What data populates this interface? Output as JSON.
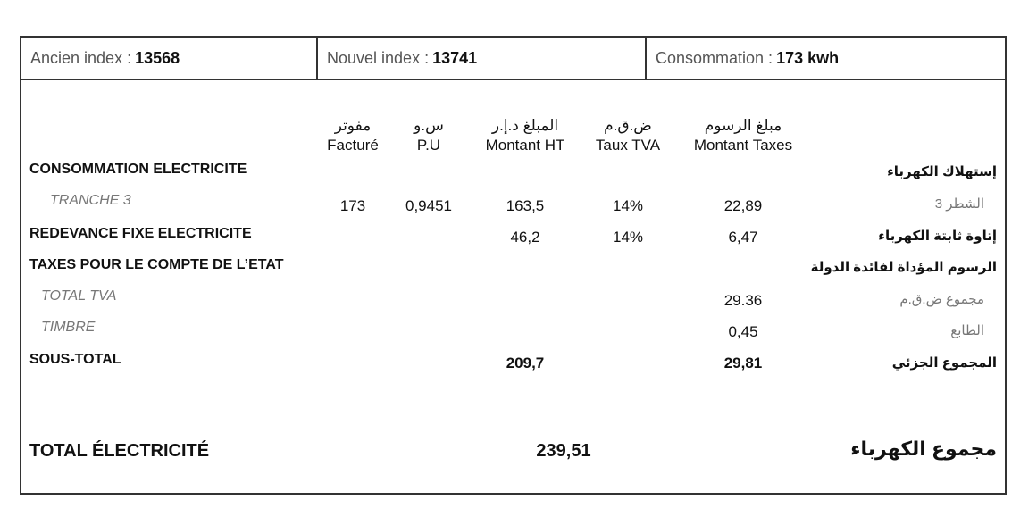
{
  "header": {
    "ancien_label": "Ancien index :",
    "ancien_value": "13568",
    "nouvel_label": "Nouvel index :",
    "nouvel_value": "13741",
    "conso_label": "Consommation :",
    "conso_value": "173 kwh"
  },
  "columns": [
    {
      "ar": "مفوتر",
      "fr": "Facturé"
    },
    {
      "ar": "س.و",
      "fr": "P.U"
    },
    {
      "ar": "المبلغ د.إ.ر",
      "fr": "Montant HT"
    },
    {
      "ar": "ض.ق.م",
      "fr": "Taux TVA"
    },
    {
      "ar": "مبلغ الرسوم",
      "fr": "Montant Taxes"
    }
  ],
  "rows": {
    "consommation": {
      "fr": "CONSOMMATION ELECTRICITE",
      "ar": "إستهلاك الكهرباء"
    },
    "tranche": {
      "fr": "TRANCHE 3",
      "ar": "الشطر 3",
      "facture": "173",
      "pu": "0,9451",
      "montant_ht": "163,5",
      "taux_tva": "14%",
      "montant_taxes": "22,89"
    },
    "redevance": {
      "fr": "REDEVANCE FIXE ELECTRICITE",
      "ar": "إتاوة ثابتة الكهرباء",
      "montant_ht": "46,2",
      "taux_tva": "14%",
      "montant_taxes": "6,47"
    },
    "taxes_etat": {
      "fr": "TAXES POUR LE COMPTE DE L’ETAT",
      "ar": "الرسوم المؤداة لفائدة الدولة"
    },
    "total_tva": {
      "fr": "TOTAL TVA",
      "ar": "مجموع ض.ق.م",
      "montant_taxes": "29.36"
    },
    "timbre": {
      "fr": "TIMBRE",
      "ar": "الطابع",
      "montant_taxes": "0,45"
    },
    "sous_total": {
      "fr": "SOUS-TOTAL",
      "ar": "المجموع الجزئي",
      "montant_ht": "209,7",
      "montant_taxes": "29,81"
    }
  },
  "total": {
    "fr": "TOTAL ÉLECTRICITÉ",
    "ar": "مجموع الكهرباء",
    "value": "239,51"
  }
}
